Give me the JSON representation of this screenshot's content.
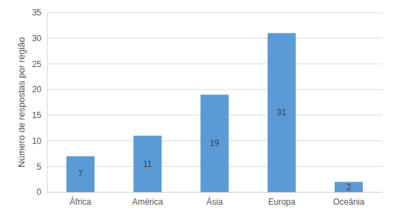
{
  "chart_data": {
    "type": "bar",
    "y_label": "Número de respostas por região",
    "categories": [
      "África",
      "América",
      "Ásia",
      "Europa",
      "Oceânia"
    ],
    "values": [
      7,
      11,
      19,
      31,
      2
    ],
    "color": "#5b9bd5",
    "ylim": [
      0,
      35
    ],
    "yticks": [
      0,
      5,
      10,
      15,
      20,
      25,
      30,
      35
    ],
    "grid": true,
    "data_labels": true
  }
}
